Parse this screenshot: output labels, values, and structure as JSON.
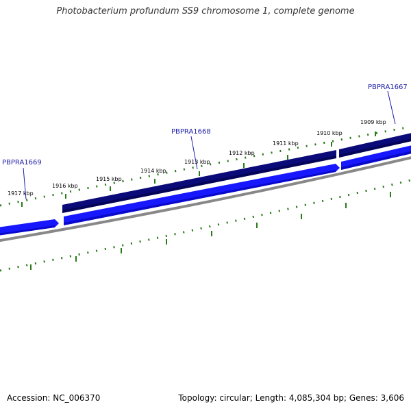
{
  "title": "Photobacterium profundum SS9 chromosome 1, complete genome",
  "accession": "Accession: NC_006370",
  "summary": "Topology: circular; Length: 4,085,304 bp; Genes: 3,606",
  "colors": {
    "gene_forward": "#1818ff",
    "gene_reverse": "#0a0a78",
    "backbone": "#888888",
    "tick": "#2a7a1a",
    "gene_label": "#1a1aa8"
  },
  "gene_labels": [
    "PBPRA1669",
    "PBPRA1668",
    "PBPRA1667"
  ],
  "kbp_labels": [
    "1917 kbp",
    "1916 kbp",
    "1915 kbp",
    "1914 kbp",
    "1913 kbp",
    "1912 kbp",
    "1911 kbp",
    "1910 kbp",
    "1909 kbp"
  ]
}
